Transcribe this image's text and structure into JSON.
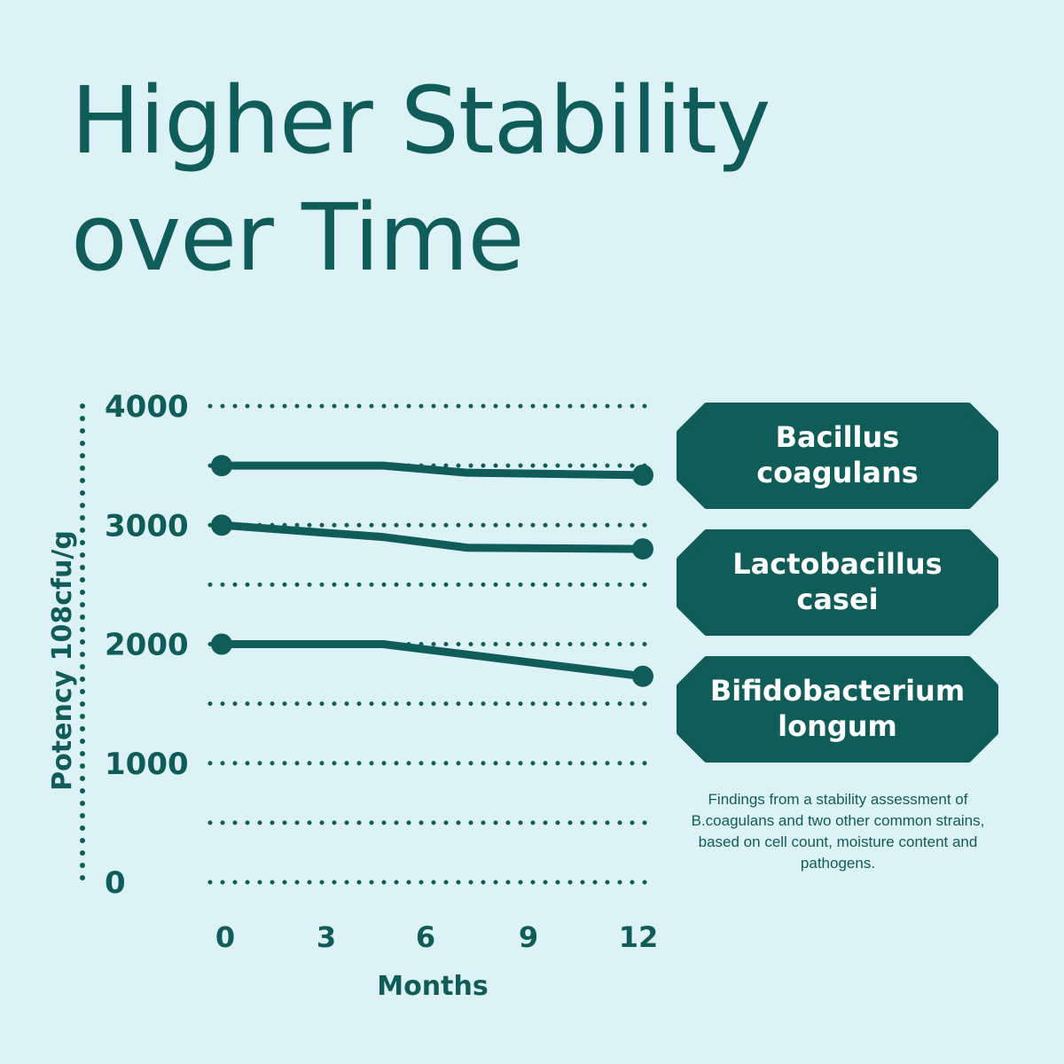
{
  "title": {
    "line1": "Higher Stability",
    "line2": "over Time"
  },
  "chart_data": {
    "type": "line",
    "xlabel": "Months",
    "ylabel": "Potency 108cfu/g",
    "x_ticks": [
      "0",
      "3",
      "6",
      "9",
      "12"
    ],
    "y_ticks": [
      "0",
      "1000",
      "2000",
      "3000",
      "4000"
    ],
    "xlim": [
      0,
      12
    ],
    "ylim": [
      0,
      4000
    ],
    "grid": "dotted horizontal every 500",
    "legend_position": "right",
    "series": [
      {
        "name": "Bacillus coagulans",
        "legend_lines": [
          "Bacillus",
          "coagulans"
        ],
        "points": [
          [
            0,
            3500
          ],
          [
            4.6,
            3500
          ],
          [
            7,
            3440
          ],
          [
            12,
            3420
          ]
        ]
      },
      {
        "name": "Lactobacillus casei",
        "legend_lines": [
          "Lactobacillus",
          "casei"
        ],
        "points": [
          [
            0,
            3000
          ],
          [
            4.6,
            2900
          ],
          [
            7,
            2810
          ],
          [
            12,
            2800
          ]
        ]
      },
      {
        "name": "Bifidobacterium longum",
        "legend_lines": [
          "Bifidobacterium",
          "longum"
        ],
        "points": [
          [
            0,
            2000
          ],
          [
            4.6,
            2000
          ],
          [
            12,
            1730
          ]
        ]
      }
    ]
  },
  "note": "Findings from a stability assessment of B.coagulans and two other common strains, based on cell count, moisture content and pathogens.",
  "colors": {
    "background": "#dcf2f6",
    "primary": "#0f5c58",
    "legend_text": "#ffffff"
  }
}
